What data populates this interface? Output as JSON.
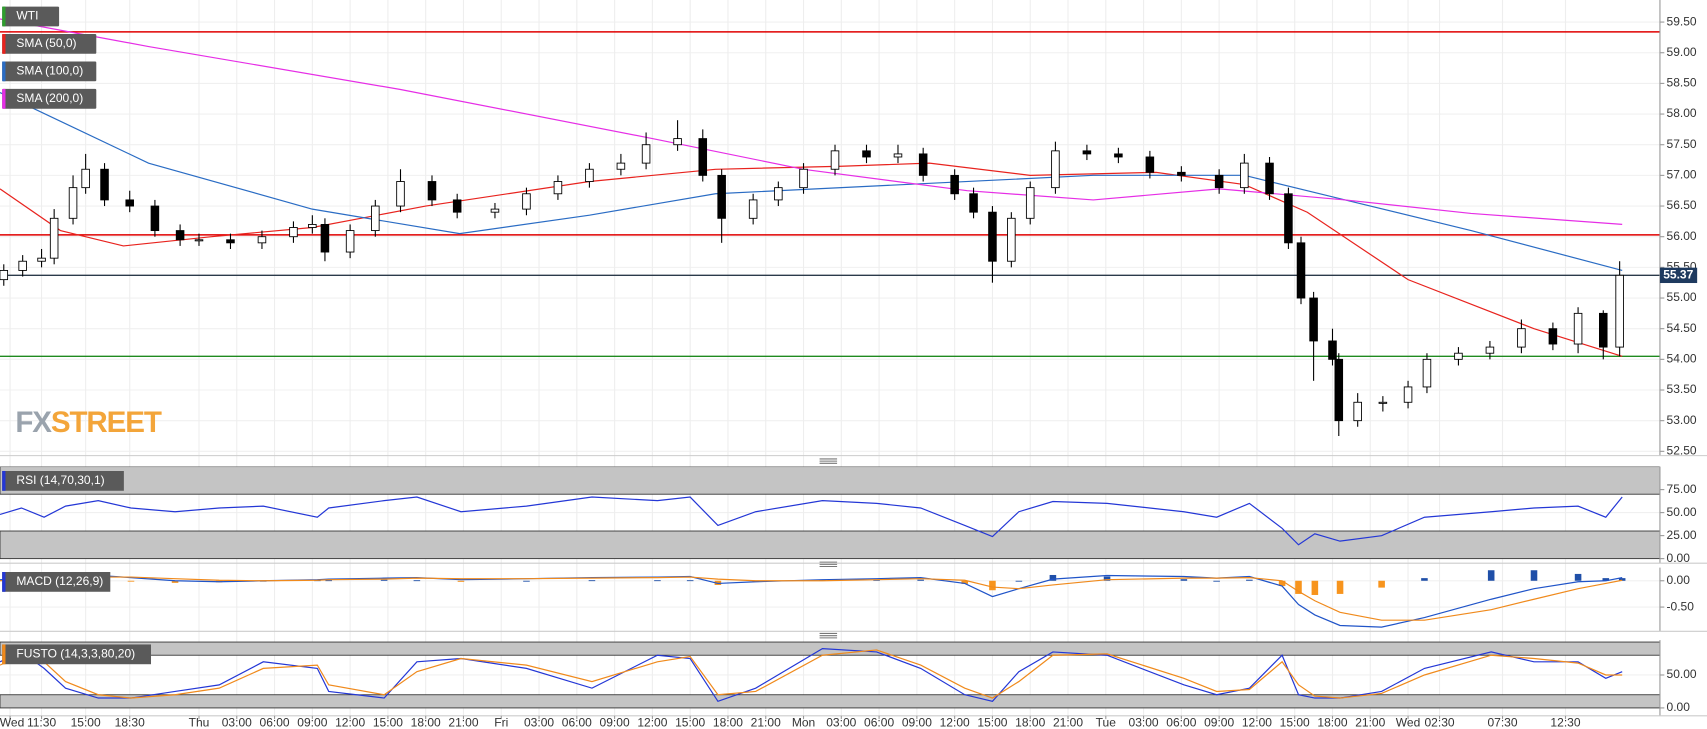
{
  "chart_data": [
    {
      "type": "candlestick",
      "title": "WTI",
      "logo": [
        "FX",
        "STREET"
      ],
      "last_price": 55.37,
      "xlim": [
        8.2,
        140
      ],
      "ylim": [
        52.43,
        59.86
      ],
      "yticks": [
        {
          "value": 52.5,
          "label": "52.50"
        },
        {
          "value": 53,
          "label": "53.00"
        },
        {
          "value": 53.5,
          "label": "53.50"
        },
        {
          "value": 54,
          "label": "54.00"
        },
        {
          "value": 54.5,
          "label": "54.50"
        },
        {
          "value": 55,
          "label": "55.00"
        },
        {
          "value": 55.5,
          "label": "55.50"
        },
        {
          "value": 56,
          "label": "56.00"
        },
        {
          "value": 56.5,
          "label": "56.50"
        },
        {
          "value": 57,
          "label": "57.00"
        },
        {
          "value": 57.5,
          "label": "57.50"
        },
        {
          "value": 58,
          "label": "58.00"
        },
        {
          "value": 58.5,
          "label": "58.50"
        },
        {
          "value": 59,
          "label": "59.00"
        },
        {
          "value": 59.5,
          "label": "59.50"
        }
      ],
      "xticks": [
        {
          "value": 9,
          "label": "Wed"
        },
        {
          "value": 11.5,
          "label": "11:30"
        },
        {
          "value": 15,
          "label": "15:00"
        },
        {
          "value": 18.5,
          "label": "18:30"
        },
        {
          "value": 24,
          "label": "Thu"
        },
        {
          "value": 27,
          "label": "03:00"
        },
        {
          "value": 30,
          "label": "06:00"
        },
        {
          "value": 33,
          "label": "09:00"
        },
        {
          "value": 36,
          "label": "12:00"
        },
        {
          "value": 39,
          "label": "15:00"
        },
        {
          "value": 42,
          "label": "18:00"
        },
        {
          "value": 45,
          "label": "21:00"
        },
        {
          "value": 48,
          "label": "Fri"
        },
        {
          "value": 51,
          "label": "03:00"
        },
        {
          "value": 54,
          "label": "06:00"
        },
        {
          "value": 57,
          "label": "09:00"
        },
        {
          "value": 60,
          "label": "12:00"
        },
        {
          "value": 63,
          "label": "15:00"
        },
        {
          "value": 66,
          "label": "18:00"
        },
        {
          "value": 69,
          "label": "21:00"
        },
        {
          "value": 72,
          "label": "Mon"
        },
        {
          "value": 75,
          "label": "03:00"
        },
        {
          "value": 78,
          "label": "06:00"
        },
        {
          "value": 81,
          "label": "09:00"
        },
        {
          "value": 84,
          "label": "12:00"
        },
        {
          "value": 87,
          "label": "15:00"
        },
        {
          "value": 90,
          "label": "18:00"
        },
        {
          "value": 93,
          "label": "21:00"
        },
        {
          "value": 96,
          "label": "Tue"
        },
        {
          "value": 99,
          "label": "03:00"
        },
        {
          "value": 102,
          "label": "06:00"
        },
        {
          "value": 105,
          "label": "09:00"
        },
        {
          "value": 108,
          "label": "12:00"
        },
        {
          "value": 111,
          "label": "15:00"
        },
        {
          "value": 114,
          "label": "18:00"
        },
        {
          "value": 117,
          "label": "21:00"
        },
        {
          "value": 120,
          "label": "Wed"
        },
        {
          "value": 122.5,
          "label": "02:30"
        },
        {
          "value": 127.5,
          "label": "07:30"
        },
        {
          "value": 132.5,
          "label": "12:30"
        }
      ],
      "title_color": "#2e9e2e",
      "x": [
        8.5,
        10,
        11.5,
        12.5,
        14,
        15,
        16.5,
        18.5,
        20.5,
        22.5,
        24,
        26.5,
        29,
        31.5,
        33,
        34,
        36,
        38,
        40,
        42.5,
        44.5,
        47.5,
        50,
        52.5,
        55,
        57.5,
        59.5,
        62,
        64,
        65.5,
        68,
        70,
        72,
        74.5,
        77,
        79.5,
        81.5,
        84,
        85.5,
        87,
        88.5,
        90,
        92,
        94.5,
        97,
        99.5,
        102,
        105,
        107,
        109,
        110.5,
        111.5,
        112.5,
        114,
        114.5,
        116,
        118,
        120,
        121.5,
        124,
        126.5,
        129,
        131.5,
        133.5,
        135.5,
        136.8
      ],
      "open": [
        55.3,
        55.45,
        55.6,
        55.65,
        56.3,
        56.8,
        57.1,
        56.6,
        56.5,
        56.1,
        55.95,
        55.95,
        55.9,
        56.0,
        56.15,
        56.2,
        55.75,
        56.1,
        56.5,
        56.9,
        56.6,
        56.4,
        56.45,
        56.7,
        56.9,
        57.1,
        57.2,
        57.5,
        57.6,
        57.0,
        56.3,
        56.6,
        56.8,
        57.1,
        57.4,
        57.3,
        57.35,
        57.0,
        56.7,
        56.4,
        55.6,
        56.3,
        56.8,
        57.4,
        57.35,
        57.3,
        57.05,
        57.0,
        56.8,
        57.2,
        56.7,
        55.9,
        55.0,
        54.3,
        54.0,
        53.0,
        53.3,
        53.3,
        53.55,
        54.0,
        54.1,
        54.2,
        54.5,
        54.25,
        54.75,
        54.2
      ],
      "high": [
        55.55,
        55.7,
        55.8,
        56.45,
        57.0,
        57.35,
        57.2,
        56.75,
        56.6,
        56.2,
        56.05,
        56.05,
        56.1,
        56.25,
        56.35,
        56.3,
        56.2,
        56.6,
        57.1,
        57.0,
        56.7,
        56.55,
        56.8,
        57.0,
        57.2,
        57.35,
        57.7,
        57.9,
        57.75,
        57.1,
        56.7,
        56.9,
        57.2,
        57.5,
        57.5,
        57.5,
        57.45,
        57.1,
        56.8,
        56.5,
        56.4,
        56.9,
        57.55,
        57.5,
        57.45,
        57.4,
        57.15,
        57.1,
        57.35,
        57.3,
        56.8,
        56.0,
        55.1,
        54.5,
        54.1,
        53.45,
        53.4,
        53.65,
        54.1,
        54.2,
        54.3,
        54.65,
        54.6,
        54.85,
        54.8,
        55.6
      ],
      "low": [
        55.2,
        55.35,
        55.5,
        55.55,
        56.2,
        56.7,
        56.5,
        56.4,
        56.0,
        55.85,
        55.85,
        55.8,
        55.8,
        55.9,
        56.05,
        55.6,
        55.65,
        56.0,
        56.4,
        56.5,
        56.3,
        56.3,
        56.35,
        56.6,
        56.8,
        57.0,
        57.1,
        57.4,
        56.9,
        55.9,
        56.2,
        56.5,
        56.7,
        57.0,
        57.2,
        57.2,
        56.9,
        56.6,
        56.3,
        55.25,
        55.5,
        56.2,
        56.7,
        57.25,
        57.2,
        56.95,
        56.9,
        56.7,
        56.7,
        56.6,
        55.8,
        54.9,
        53.65,
        53.9,
        52.75,
        52.9,
        53.15,
        53.2,
        53.45,
        53.9,
        54.0,
        54.1,
        54.15,
        54.1,
        54.0,
        54.05
      ],
      "close": [
        55.45,
        55.6,
        55.65,
        56.3,
        56.8,
        57.1,
        56.6,
        56.5,
        56.1,
        55.95,
        55.95,
        55.9,
        56.0,
        56.15,
        56.2,
        55.75,
        56.1,
        56.5,
        56.9,
        56.6,
        56.4,
        56.45,
        56.7,
        56.9,
        57.1,
        57.2,
        57.5,
        57.6,
        57.0,
        56.3,
        56.6,
        56.8,
        57.1,
        57.4,
        57.3,
        57.35,
        57.0,
        56.7,
        56.4,
        55.6,
        56.3,
        56.8,
        57.4,
        57.35,
        57.3,
        57.05,
        57.0,
        56.8,
        57.2,
        56.7,
        55.9,
        55.0,
        54.3,
        54.0,
        53.0,
        53.3,
        53.3,
        53.55,
        54.0,
        54.1,
        54.2,
        54.5,
        54.25,
        54.75,
        54.2,
        55.37
      ],
      "overlays": [
        {
          "name": "SMA (50,0)",
          "color": "#e8231e",
          "x": [
            8.2,
            13,
            18,
            25,
            33,
            42,
            55,
            65,
            75,
            82,
            90,
            100,
            107,
            112,
            120,
            130,
            137
          ],
          "values": [
            56.78,
            56.1,
            55.85,
            56.0,
            56.15,
            56.5,
            56.9,
            57.1,
            57.15,
            57.2,
            57.0,
            57.05,
            56.85,
            56.4,
            55.3,
            54.5,
            54.05
          ]
        },
        {
          "name": "SMA (100,0)",
          "color": "#2a6cc4",
          "x": [
            8.2,
            20,
            33,
            44.7,
            55,
            65,
            80,
            95,
            107,
            115,
            125,
            137
          ],
          "values": [
            58.35,
            57.2,
            56.45,
            56.05,
            56.35,
            56.7,
            56.85,
            57.0,
            57.0,
            56.6,
            56.1,
            55.45
          ]
        },
        {
          "name": "SMA (200,0)",
          "color": "#e62ee6",
          "x": [
            8.2,
            20,
            40,
            60,
            72,
            85,
            95,
            105,
            115,
            125,
            137
          ],
          "values": [
            59.55,
            59.1,
            58.4,
            57.6,
            57.1,
            56.75,
            56.6,
            56.78,
            56.6,
            56.38,
            56.2
          ]
        }
      ],
      "hlines": [
        {
          "value": 59.34,
          "color": "#e00000"
        },
        {
          "value": 56.03,
          "color": "#e00000"
        },
        {
          "value": 54.05,
          "color": "#1f8a1f"
        },
        {
          "value": 55.37,
          "color": "#2b3a4a"
        }
      ],
      "last_price_color": "#1e3a5f"
    },
    {
      "type": "line",
      "title": "RSI (14,70,30,1)",
      "title_color": "#2437d6",
      "xlim": [
        8.2,
        140
      ],
      "ylim": [
        -5,
        100
      ],
      "yticks": [
        {
          "value": 0,
          "label": "0.00"
        },
        {
          "value": 25,
          "label": "25.00"
        },
        {
          "value": 50,
          "label": "50.00"
        },
        {
          "value": 75,
          "label": "75.00"
        }
      ],
      "bands": [
        [
          70,
          100
        ],
        [
          0,
          30
        ]
      ],
      "x": [
        8.2,
        9.9,
        11.7,
        13.4,
        16,
        18.6,
        22.1,
        25.6,
        29.1,
        33.4,
        34.3,
        38.7,
        41.3,
        44.8,
        50,
        55.2,
        60.4,
        63,
        65.2,
        68.2,
        73.5,
        77.8,
        81.3,
        84.8,
        87,
        89.1,
        91.8,
        96.1,
        102.2,
        104.8,
        107.4,
        110,
        111.3,
        112.6,
        114.6,
        117.9,
        121.3,
        126.6,
        130,
        133.5,
        135.7,
        137
      ],
      "series": [
        {
          "color": "#2437d6",
          "values": [
            48,
            55,
            45,
            57,
            63,
            55,
            51,
            55,
            57,
            45,
            55,
            63,
            67,
            51,
            57,
            67,
            63,
            67,
            36,
            51,
            63,
            60,
            55,
            36,
            24,
            51,
            62,
            60,
            51,
            45,
            60,
            33,
            15,
            27,
            19,
            25,
            45,
            51,
            55,
            57,
            45,
            67
          ]
        }
      ]
    },
    {
      "type": "combo",
      "title": "MACD (12,26,9)",
      "title_color": "#2437d6",
      "xlim": [
        8.2,
        140
      ],
      "ylim": [
        -0.96,
        0.25
      ],
      "yticks": [
        {
          "value": -0.5,
          "label": "-0.50"
        },
        {
          "value": 0,
          "label": "0.00"
        }
      ],
      "x": [
        8.2,
        9.9,
        11.7,
        13.4,
        16,
        18.6,
        22.1,
        25.6,
        29.1,
        33.4,
        34.3,
        38.7,
        41.3,
        44.8,
        50,
        55.2,
        60.4,
        63,
        65.2,
        68.2,
        73.5,
        77.8,
        81.3,
        84.8,
        87,
        89.1,
        91.8,
        96.1,
        102.2,
        104.8,
        107.4,
        110,
        111.3,
        112.6,
        114.6,
        117.9,
        121.3,
        126.6,
        130,
        133.5,
        135.7,
        137
      ],
      "series": [
        {
          "kind": "bar",
          "color": "#1f4fa8",
          "negative_color": "#f7941d",
          "values": [
            0.02,
            0.02,
            0.02,
            0.03,
            0.03,
            -0.01,
            -0.04,
            -0.03,
            0.0,
            0.01,
            0.01,
            0.02,
            0.01,
            -0.02,
            0.0,
            0.01,
            0.01,
            0.01,
            -0.08,
            -0.02,
            0.02,
            0.02,
            0.02,
            -0.06,
            -0.18,
            0.0,
            0.11,
            0.08,
            0.03,
            0.0,
            0.02,
            -0.1,
            -0.25,
            -0.27,
            -0.25,
            -0.13,
            0.05,
            0.2,
            0.2,
            0.13,
            0.05,
            0.05
          ]
        },
        {
          "kind": "line",
          "color": "#2054c8",
          "values": [
            0.02,
            0.04,
            0.05,
            0.08,
            0.1,
            0.06,
            0.0,
            -0.02,
            0.0,
            0.02,
            0.03,
            0.05,
            0.06,
            0.02,
            0.04,
            0.06,
            0.07,
            0.08,
            -0.05,
            -0.02,
            0.02,
            0.04,
            0.06,
            -0.05,
            -0.3,
            -0.15,
            0.03,
            0.1,
            0.08,
            0.05,
            0.08,
            -0.1,
            -0.45,
            -0.65,
            -0.85,
            -0.88,
            -0.7,
            -0.35,
            -0.15,
            -0.02,
            0.0,
            0.06
          ]
        },
        {
          "kind": "line",
          "color": "#f08a1c",
          "values": [
            0.0,
            0.02,
            0.03,
            0.05,
            0.07,
            0.07,
            0.04,
            0.01,
            0.0,
            0.01,
            0.02,
            0.03,
            0.05,
            0.04,
            0.04,
            0.05,
            0.06,
            0.07,
            0.03,
            0.0,
            0.0,
            0.02,
            0.04,
            0.01,
            -0.12,
            -0.15,
            -0.08,
            0.02,
            0.05,
            0.05,
            0.06,
            0.0,
            -0.2,
            -0.38,
            -0.6,
            -0.75,
            -0.75,
            -0.55,
            -0.35,
            -0.15,
            -0.05,
            0.01
          ]
        }
      ]
    },
    {
      "type": "line",
      "title": "FUSTO (14,3,3,80,20)",
      "title_color": "#f08a1c",
      "xlim": [
        8.2,
        140
      ],
      "ylim": [
        -12,
        103
      ],
      "yticks": [
        {
          "value": 0,
          "label": "0.00"
        },
        {
          "value": 50,
          "label": "50.00"
        }
      ],
      "bands": [
        [
          80,
          100
        ],
        [
          0,
          20
        ]
      ],
      "x": [
        8.2,
        9.9,
        11.7,
        13.4,
        16,
        18.6,
        22.1,
        25.6,
        29.1,
        33.4,
        34.3,
        38.7,
        41.3,
        44.8,
        50,
        55.2,
        60.4,
        63,
        65.2,
        68.2,
        73.5,
        77.8,
        81.3,
        84.8,
        87,
        89.1,
        91.8,
        96.1,
        102.2,
        104.8,
        107.4,
        110,
        111.3,
        112.6,
        114.6,
        117.9,
        121.3,
        126.6,
        130,
        133.5,
        135.7,
        137
      ],
      "series": [
        {
          "color": "#2437d6",
          "values": [
            70,
            85,
            60,
            30,
            15,
            15,
            25,
            35,
            70,
            60,
            25,
            15,
            70,
            75,
            60,
            30,
            80,
            75,
            10,
            30,
            90,
            85,
            60,
            20,
            10,
            55,
            85,
            80,
            35,
            20,
            30,
            80,
            20,
            15,
            15,
            25,
            60,
            85,
            70,
            70,
            45,
            55
          ]
        },
        {
          "color": "#f08a1c",
          "values": [
            65,
            80,
            70,
            40,
            20,
            15,
            20,
            30,
            60,
            65,
            35,
            20,
            55,
            75,
            65,
            40,
            70,
            78,
            20,
            25,
            80,
            88,
            65,
            30,
            15,
            40,
            80,
            82,
            45,
            25,
            28,
            70,
            35,
            18,
            15,
            22,
            50,
            80,
            75,
            68,
            50,
            50
          ]
        }
      ]
    }
  ]
}
